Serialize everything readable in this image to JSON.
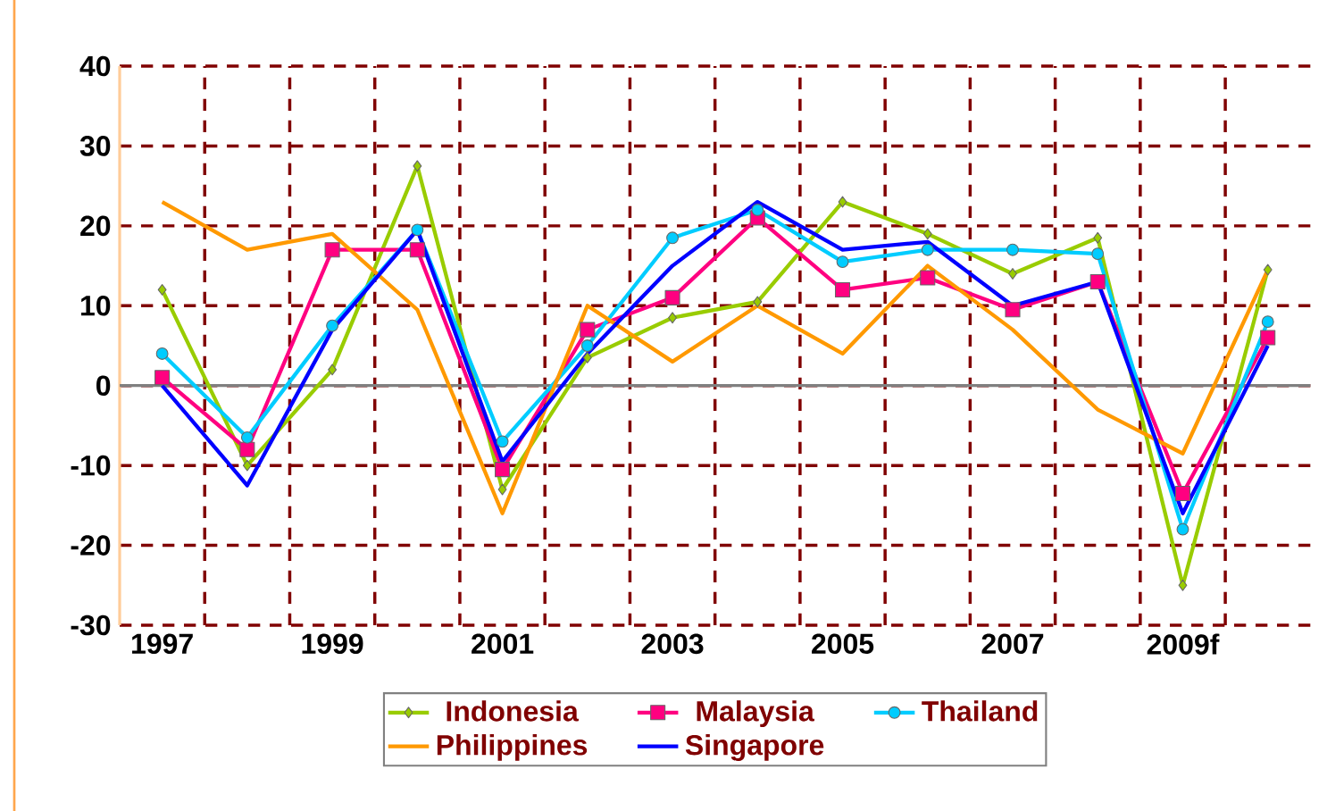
{
  "chart_data": {
    "type": "line",
    "categories": [
      "1997",
      null,
      "1999",
      null,
      "2001",
      null,
      "2003",
      null,
      "2005",
      null,
      "2007",
      null,
      "2009f",
      null
    ],
    "series": [
      {
        "name": "Indonesia",
        "color": "#99cc00",
        "marker": "diamond",
        "values": [
          12,
          -10,
          2,
          27.5,
          -13,
          3.5,
          8.5,
          10.5,
          23,
          19,
          14,
          18.5,
          -25,
          14.5
        ]
      },
      {
        "name": "Malaysia",
        "color": "#ff0080",
        "marker": "square",
        "values": [
          1,
          -8,
          17,
          17,
          -10.5,
          7,
          11,
          21,
          12,
          13.5,
          9.5,
          13,
          -13.5,
          6
        ]
      },
      {
        "name": "Thailand",
        "color": "#00ccff",
        "marker": "circle",
        "values": [
          4,
          -6.5,
          7.5,
          19.5,
          -7,
          5,
          18.5,
          22,
          15.5,
          17,
          17,
          16.5,
          -18,
          8
        ]
      },
      {
        "name": "Philippines",
        "color": "#ff9900",
        "marker": "none",
        "values": [
          23,
          17,
          19,
          9.5,
          -16,
          10,
          3,
          10,
          4,
          15,
          7,
          -3,
          -8.5,
          14.5
        ]
      },
      {
        "name": "Singapore",
        "color": "#0000ff",
        "marker": "none",
        "values": [
          0,
          -12.5,
          7,
          19.5,
          -9.5,
          4,
          15,
          23,
          17,
          18,
          10,
          13,
          -16,
          5
        ]
      }
    ],
    "ylim": [
      -30,
      40
    ],
    "yticks": [
      -30,
      -20,
      -10,
      0,
      10,
      20,
      30,
      40
    ],
    "grid": true,
    "legend": "bottom",
    "line_style": "solid"
  }
}
